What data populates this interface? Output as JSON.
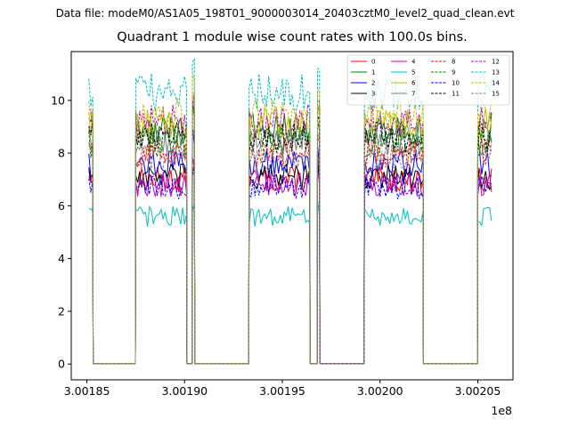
{
  "suptitle": "Data file: modeM0/AS1A05_198T01_9000003014_20403cztM0_level2_quad_clean.evt",
  "chart_data": {
    "type": "line",
    "title": "Quadrant 1 module wise count rates with 100.0s bins.",
    "xlabel": "",
    "ylabel": "",
    "x_offset_label": "1e8",
    "xlim": [
      3.001842,
      3.002068
    ],
    "ylim": [
      -0.6,
      11.85
    ],
    "x_ticks": [
      3.00185,
      3.0019,
      3.00195,
      3.002,
      3.00205
    ],
    "x_tick_labels": [
      "3.00185",
      "3.00190",
      "3.00195",
      "3.00200",
      "3.00205"
    ],
    "y_ticks": [
      0,
      2,
      4,
      6,
      8,
      10
    ],
    "y_tick_labels": [
      "0",
      "2",
      "4",
      "6",
      "8",
      "10"
    ],
    "x_unit_scale": 100000000.0,
    "bin_width": 1e-06,
    "segments": [
      {
        "start": 3.001851,
        "end": 3.001853
      },
      {
        "start": 3.001875,
        "end": 3.001901
      },
      {
        "start": 3.001904,
        "end": 3.001905
      },
      {
        "start": 3.001933,
        "end": 3.001964
      },
      {
        "start": 3.001968,
        "end": 3.001969
      },
      {
        "start": 3.001992,
        "end": 3.002022
      },
      {
        "start": 3.00205,
        "end": 3.002057
      }
    ],
    "zero_gaps": [
      [
        3.001853,
        3.001875
      ],
      [
        3.001901,
        3.001904
      ],
      [
        3.001905,
        3.001933
      ],
      [
        3.001964,
        3.001968
      ],
      [
        3.001969,
        3.001992
      ],
      [
        3.002022,
        3.00205
      ]
    ],
    "legend_position": "top-right",
    "series": [
      {
        "name": "0",
        "color": "#ff0000",
        "dash": "solid",
        "level": 7.0
      },
      {
        "name": "1",
        "color": "#008000",
        "dash": "solid",
        "level": 8.9
      },
      {
        "name": "2",
        "color": "#0000ff",
        "dash": "solid",
        "level": 7.6
      },
      {
        "name": "3",
        "color": "#000000",
        "dash": "solid",
        "level": 7.1
      },
      {
        "name": "4",
        "color": "#bf00bf",
        "dash": "solid",
        "level": 6.8
      },
      {
        "name": "5",
        "color": "#00bfbf",
        "dash": "solid",
        "level": 5.6
      },
      {
        "name": "6",
        "color": "#bfbf00",
        "dash": "solid",
        "level": 9.1
      },
      {
        "name": "7",
        "color": "#808080",
        "dash": "solid",
        "level": 8.5
      },
      {
        "name": "8",
        "color": "#ff0000",
        "dash": "dashed",
        "level": 8.0
      },
      {
        "name": "9",
        "color": "#008000",
        "dash": "dashed",
        "level": 8.4
      },
      {
        "name": "10",
        "color": "#0000ff",
        "dash": "dashed",
        "level": 6.7
      },
      {
        "name": "11",
        "color": "#000000",
        "dash": "dashed",
        "level": 8.6
      },
      {
        "name": "12",
        "color": "#bf00bf",
        "dash": "dashed",
        "level": 9.2
      },
      {
        "name": "13",
        "color": "#00bfbf",
        "dash": "dashed",
        "level": 10.3
      },
      {
        "name": "14",
        "color": "#bfbf00",
        "dash": "dashed",
        "level": 9.5
      },
      {
        "name": "15",
        "color": "#808080",
        "dash": "dashed",
        "level": 7.9
      }
    ]
  }
}
